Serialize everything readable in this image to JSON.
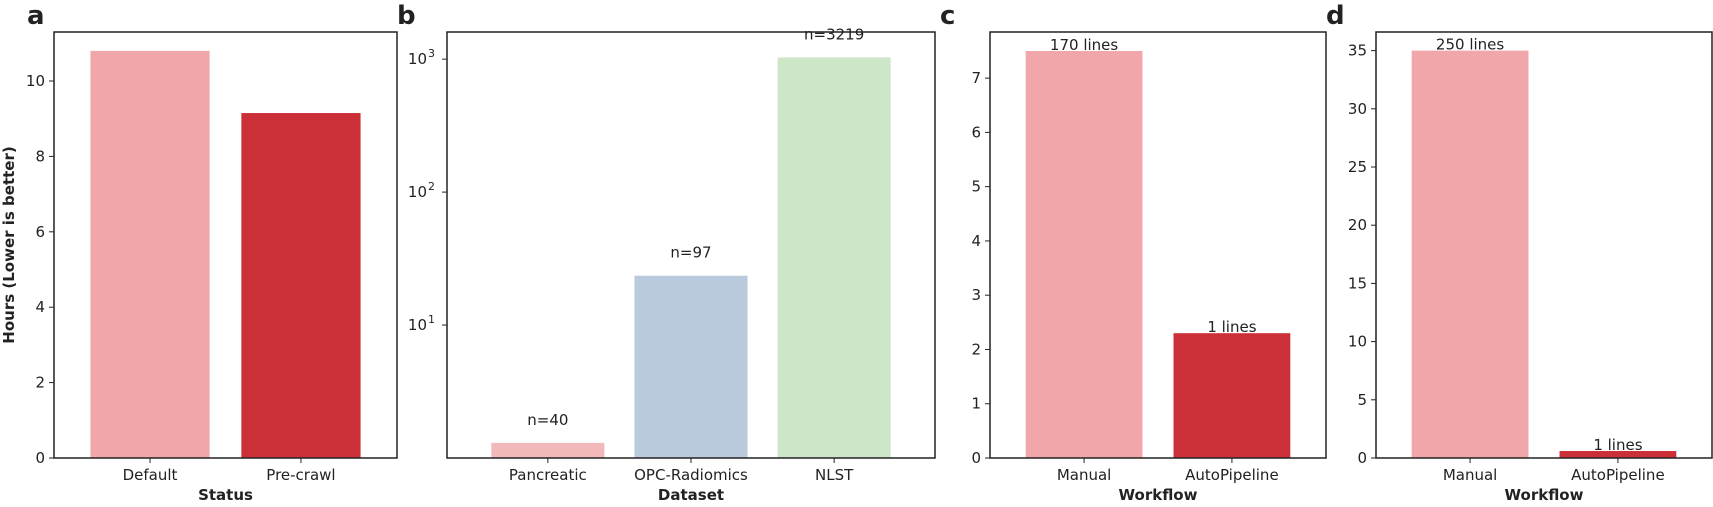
{
  "chart_data": [
    {
      "panel": "a",
      "type": "bar",
      "categories": [
        "Default",
        "Pre-crawl"
      ],
      "values": [
        10.8,
        9.15
      ],
      "colors": [
        "#f1a7aa",
        "#cb3038"
      ],
      "xlabel": "Status",
      "ylabel": "Hours (Lower is better)",
      "ylim": [
        0,
        11.3
      ],
      "yticks": [
        0,
        2,
        4,
        6,
        8,
        10
      ],
      "ytick_labels": [
        "0",
        "2",
        "4",
        "6",
        "8",
        "10"
      ],
      "data_labels": [],
      "scale": "linear",
      "grid": false
    },
    {
      "panel": "b",
      "type": "bar",
      "categories": [
        "Pancreatic",
        "OPC-Radiomics",
        "NLST"
      ],
      "values": [
        1.3,
        23.5,
        1030
      ],
      "colors": [
        "#f2b9bb",
        "#b8cadc",
        "#cde6c7"
      ],
      "xlabel": "Dataset",
      "ylabel": "",
      "ylim": [
        1,
        1600
      ],
      "yticks": [
        10,
        100,
        1000
      ],
      "ytick_labels": [
        "10",
        "10",
        "10"
      ],
      "ytick_exponents": [
        "1",
        "2",
        "3"
      ],
      "data_labels": [
        "n=40",
        "n=97",
        "n=3219"
      ],
      "scale": "log",
      "grid": false
    },
    {
      "panel": "c",
      "type": "bar",
      "categories": [
        "Manual",
        "AutoPipeline"
      ],
      "values": [
        7.5,
        2.3
      ],
      "colors": [
        "#f1a7aa",
        "#cb3038"
      ],
      "xlabel": "Workflow",
      "ylabel": "",
      "ylim": [
        0,
        7.85
      ],
      "yticks": [
        0,
        1,
        2,
        3,
        4,
        5,
        6,
        7
      ],
      "ytick_labels": [
        "0",
        "1",
        "2",
        "3",
        "4",
        "5",
        "6",
        "7"
      ],
      "data_labels": [
        "170 lines",
        "1 lines"
      ],
      "scale": "linear",
      "grid": false
    },
    {
      "panel": "d",
      "type": "bar",
      "categories": [
        "Manual",
        "AutoPipeline"
      ],
      "values": [
        35,
        0.6
      ],
      "colors": [
        "#f1a7aa",
        "#cb3038"
      ],
      "xlabel": "Workflow",
      "ylabel": "",
      "ylim": [
        0,
        36.6
      ],
      "yticks": [
        0,
        5,
        10,
        15,
        20,
        25,
        30,
        35
      ],
      "ytick_labels": [
        "0",
        "5",
        "10",
        "15",
        "20",
        "25",
        "30",
        "35"
      ],
      "data_labels": [
        "250 lines",
        "1 lines"
      ],
      "scale": "linear",
      "grid": false
    }
  ]
}
